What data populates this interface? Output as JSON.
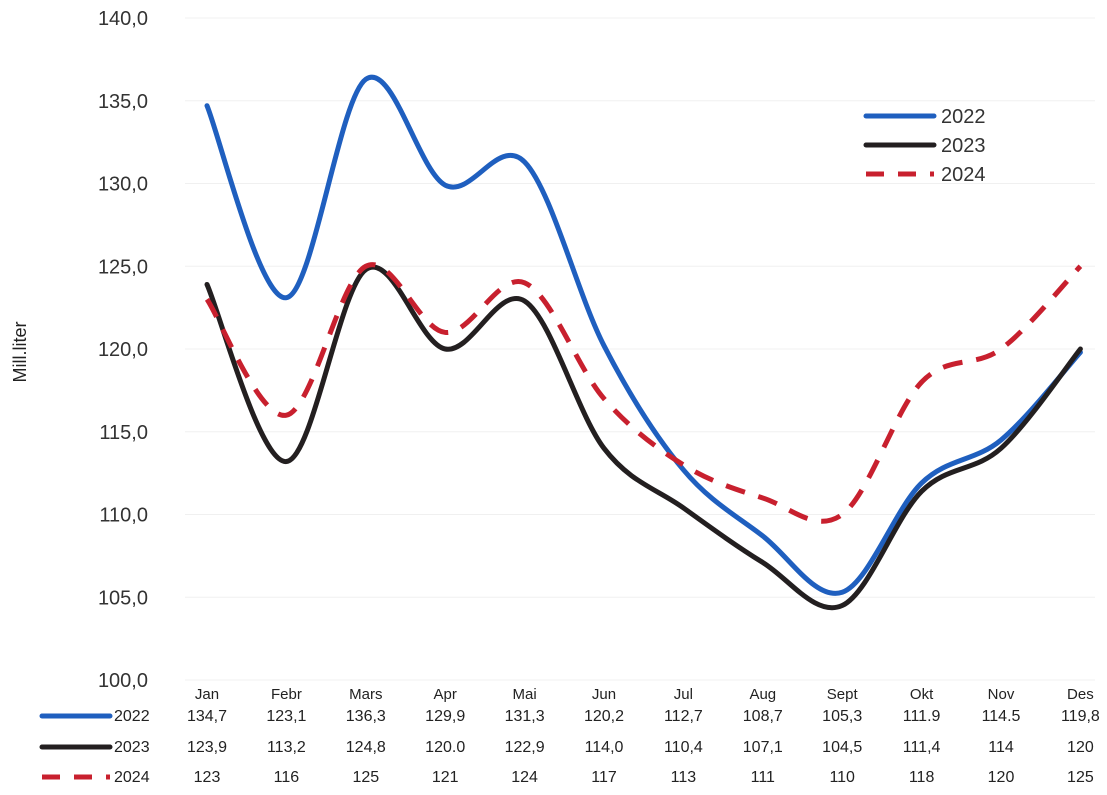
{
  "chart_data": {
    "type": "line",
    "ylabel": "Mill.liter",
    "ylim": [
      100,
      140
    ],
    "yticks": [
      "100,0",
      "105,0",
      "110,0",
      "115,0",
      "120,0",
      "125,0",
      "130,0",
      "135,0",
      "140,0"
    ],
    "categories": [
      "Jan",
      "Febr",
      "Mars",
      "Apr",
      "Mai",
      "Jun",
      "Jul",
      "Aug",
      "Sept",
      "Okt",
      "Nov",
      "Des"
    ],
    "legend_position": "top-right",
    "grid": true,
    "series": [
      {
        "name": "2022",
        "color": "#1F5FBF",
        "style": "solid",
        "values": [
          134.7,
          123.1,
          136.3,
          129.9,
          131.3,
          120.2,
          112.7,
          108.7,
          105.3,
          111.9,
          114.5,
          119.8
        ],
        "table": [
          "134,7",
          "123,1",
          "136,3",
          "129,9",
          "131,3",
          "120,2",
          "112,7",
          "108,7",
          "105,3",
          "111.9",
          "114.5",
          "119,8"
        ]
      },
      {
        "name": "2023",
        "color": "#231F20",
        "style": "solid",
        "values": [
          123.9,
          113.2,
          124.8,
          120.0,
          122.9,
          114.0,
          110.4,
          107.1,
          104.5,
          111.4,
          114,
          120
        ],
        "table": [
          "123,9",
          "113,2",
          "124,8",
          "120.0",
          "122,9",
          "114,0",
          "110,4",
          "107,1",
          "104,5",
          "111,4",
          "114",
          "120"
        ]
      },
      {
        "name": "2024",
        "color": "#C8202E",
        "style": "dashed",
        "values": [
          123,
          116,
          125,
          121,
          124,
          117,
          113,
          111,
          110,
          118,
          120,
          125
        ],
        "table": [
          "123",
          "116",
          "125",
          "121",
          "124",
          "117",
          "113",
          "111",
          "110",
          "118",
          "120",
          "125"
        ]
      }
    ]
  }
}
